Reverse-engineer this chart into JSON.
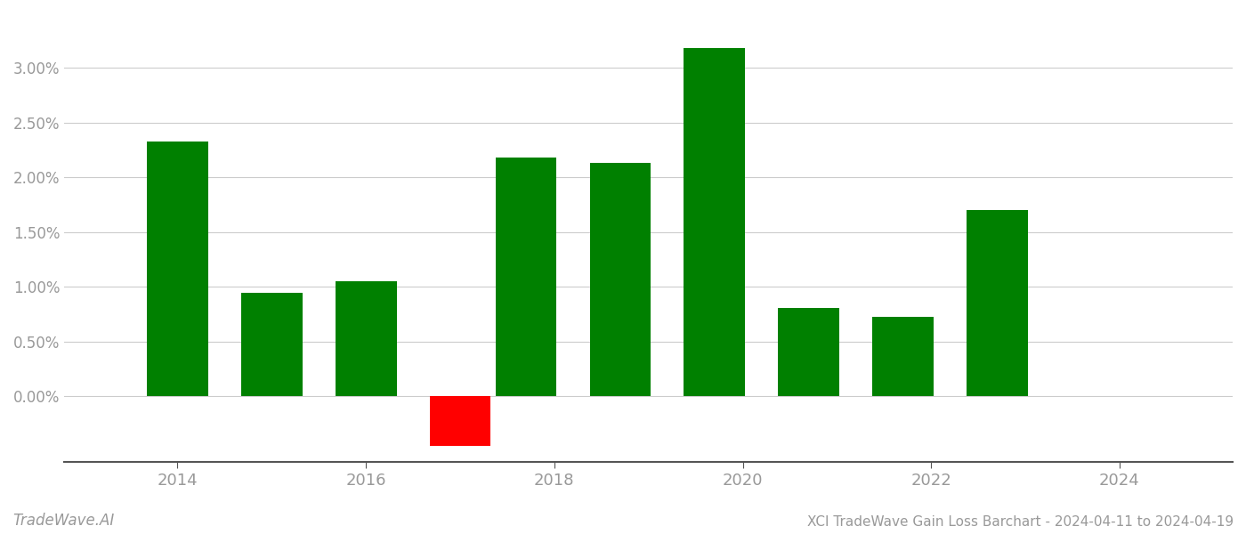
{
  "years": [
    2014,
    2015,
    2016,
    2017,
    2017.7,
    2018.7,
    2019.7,
    2020.7,
    2021.7,
    2022.7,
    2023.7
  ],
  "values": [
    0.0233,
    0.0095,
    0.0105,
    -0.0045,
    0.0218,
    0.0213,
    0.0318,
    0.0081,
    0.0073,
    0.017,
    0.0
  ],
  "bar_colors": [
    "#008000",
    "#008000",
    "#008000",
    "#ff0000",
    "#008000",
    "#008000",
    "#008000",
    "#008000",
    "#008000",
    "#008000",
    "#008000"
  ],
  "title": "XCI TradeWave Gain Loss Barchart - 2024-04-11 to 2024-04-19",
  "watermark": "TradeWave.AI",
  "xlim_min": 2012.8,
  "xlim_max": 2025.2,
  "ylim_min": -0.006,
  "ylim_max": 0.035,
  "background_color": "#ffffff",
  "grid_color": "#cccccc",
  "axis_label_color": "#999999",
  "bar_width": 0.65,
  "xticks": [
    2014,
    2016,
    2018,
    2020,
    2022,
    2024
  ],
  "yticks": [
    0.0,
    0.005,
    0.01,
    0.015,
    0.02,
    0.025,
    0.03
  ],
  "ytick_labels": [
    "0.00%",
    "0.50%",
    "1.00%",
    "1.50%",
    "2.00%",
    "2.50%",
    "3.00%"
  ]
}
